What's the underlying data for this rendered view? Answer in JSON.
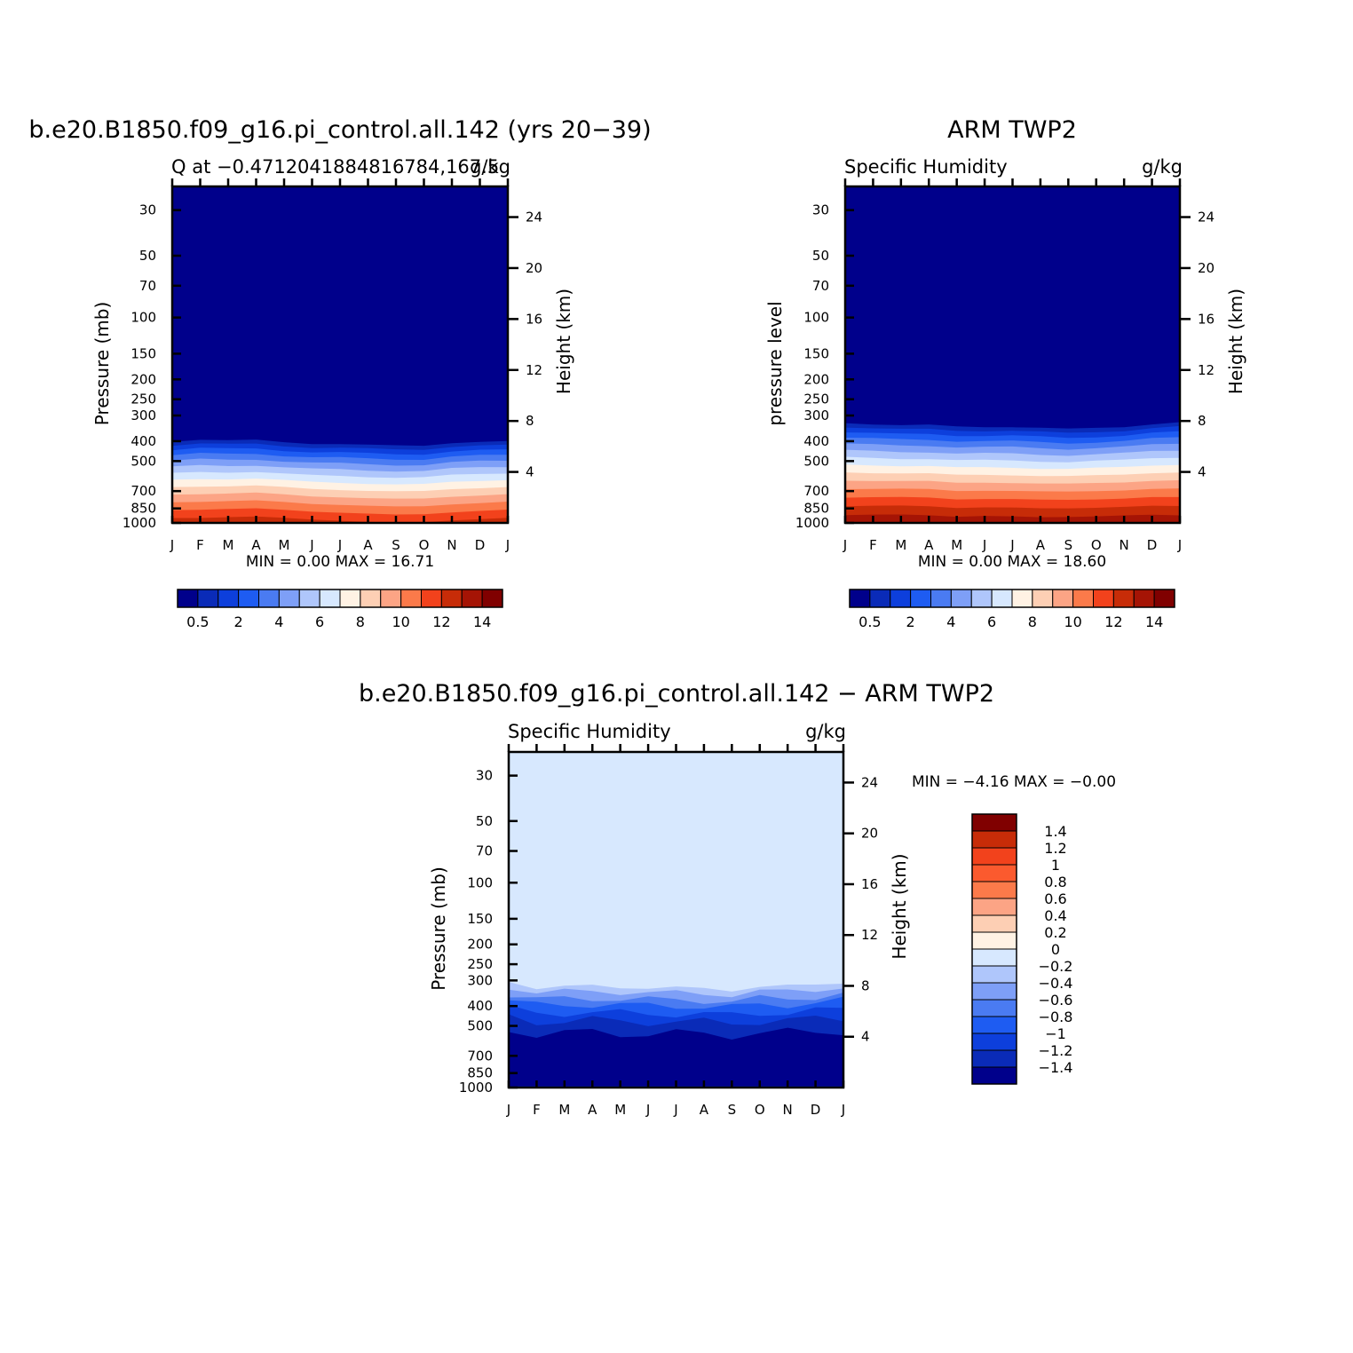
{
  "chart_data": [
    {
      "type": "heatmap",
      "title": "b.e20.B1850.f09_g16.pi_control.all.142 (yrs 20−39)",
      "subtitle_left": "Q at −0.4712041884816784,167.5",
      "subtitle_right": "g/kg",
      "ylabel": "Pressure (mb)",
      "ylabel_right": "Height (km)",
      "x_ticks": [
        "J",
        "F",
        "M",
        "A",
        "M",
        "J",
        "J",
        "A",
        "S",
        "O",
        "N",
        "D",
        "J"
      ],
      "y_ticks": [
        30,
        50,
        70,
        100,
        150,
        200,
        250,
        300,
        400,
        500,
        700,
        850,
        1000
      ],
      "y_right_ticks": [
        24,
        20,
        16,
        12,
        8,
        4
      ],
      "ylim": [
        1000,
        23
      ],
      "min_label": "MIN =",
      "min_value": "0.00",
      "max_label": "MAX =",
      "max_value": "16.71",
      "field_min": 0.0,
      "field_max": 16.71,
      "surface_max_by_month": [
        16.3,
        16.2,
        16.4,
        16.6,
        16.4,
        16.0,
        15.7,
        15.5,
        15.4,
        15.5,
        15.8,
        16.0,
        16.3
      ],
      "moist_top_pressure_by_month": [
        390,
        380,
        385,
        385,
        395,
        400,
        400,
        405,
        410,
        410,
        395,
        390,
        390
      ],
      "colorbar": {
        "orientation": "horizontal",
        "levels": [
          0.5,
          1,
          2,
          3,
          4,
          5,
          6,
          7,
          8,
          9,
          10,
          11,
          12,
          13,
          14
        ],
        "tick_labels": [
          "0.5",
          "2",
          "4",
          "6",
          "8",
          "10",
          "12",
          "14"
        ],
        "colors": [
          "#00008b",
          "#0a2bb8",
          "#0d3fdc",
          "#1e5cf2",
          "#4a7bf2",
          "#7e9ff7",
          "#afc6fb",
          "#d7e8fe",
          "#fff2e4",
          "#fdcfb4",
          "#fca485",
          "#fb7a4a",
          "#f2421c",
          "#c72c08",
          "#a51405",
          "#800000"
        ]
      }
    },
    {
      "type": "heatmap",
      "title": "ARM TWP2",
      "subtitle_left": "Specific Humidity",
      "subtitle_right": "g/kg",
      "ylabel": "pressure level",
      "ylabel_right": "Height (km)",
      "x_ticks": [
        "J",
        "F",
        "M",
        "A",
        "M",
        "J",
        "J",
        "A",
        "S",
        "O",
        "N",
        "D",
        "J"
      ],
      "y_ticks": [
        30,
        50,
        70,
        100,
        150,
        200,
        250,
        300,
        400,
        500,
        700,
        850,
        1000
      ],
      "y_right_ticks": [
        24,
        20,
        16,
        12,
        8,
        4
      ],
      "ylim": [
        1000,
        23
      ],
      "min_label": "MIN =",
      "min_value": "0.00",
      "max_label": "MAX =",
      "max_value": "18.60",
      "field_min": 0.0,
      "field_max": 18.6,
      "surface_max_by_month": [
        18.3,
        18.4,
        18.5,
        18.4,
        18.1,
        18.2,
        18.1,
        18.0,
        18.1,
        18.2,
        18.3,
        18.4,
        18.3
      ],
      "moist_top_pressure_by_month": [
        315,
        320,
        325,
        325,
        330,
        330,
        330,
        335,
        340,
        335,
        330,
        320,
        315
      ],
      "colorbar": {
        "orientation": "horizontal",
        "levels": [
          0.5,
          1,
          2,
          3,
          4,
          5,
          6,
          7,
          8,
          9,
          10,
          11,
          12,
          13,
          14
        ],
        "tick_labels": [
          "0.5",
          "2",
          "4",
          "6",
          "8",
          "10",
          "12",
          "14"
        ],
        "colors": [
          "#00008b",
          "#0a2bb8",
          "#0d3fdc",
          "#1e5cf2",
          "#4a7bf2",
          "#7e9ff7",
          "#afc6fb",
          "#d7e8fe",
          "#fff2e4",
          "#fdcfb4",
          "#fca485",
          "#fb7a4a",
          "#f2421c",
          "#c72c08",
          "#a51405",
          "#800000"
        ]
      }
    },
    {
      "type": "heatmap",
      "title": "b.e20.B1850.f09_g16.pi_control.all.142 − ARM TWP2",
      "subtitle_left": "Specific Humidity",
      "subtitle_right": "g/kg",
      "ylabel": "Pressure (mb)",
      "ylabel_right": "Height (km)",
      "x_ticks": [
        "J",
        "F",
        "M",
        "A",
        "M",
        "J",
        "J",
        "A",
        "S",
        "O",
        "N",
        "D",
        "J"
      ],
      "y_ticks": [
        30,
        50,
        70,
        100,
        150,
        200,
        250,
        300,
        400,
        500,
        700,
        850,
        1000
      ],
      "y_right_ticks": [
        24,
        20,
        16,
        12,
        8,
        4
      ],
      "ylim": [
        1000,
        23
      ],
      "min_label": "MIN =",
      "min_value": "−4.16",
      "max_label": "MAX =",
      "max_value": "−0.00",
      "field_min": -4.16,
      "field_max": 0.0,
      "upper_bias_top_pressure_by_month": [
        305,
        325,
        320,
        320,
        325,
        325,
        325,
        330,
        335,
        320,
        320,
        315,
        305
      ],
      "colorbar": {
        "orientation": "vertical",
        "levels": [
          1.4,
          1.2,
          1,
          0.8,
          0.6,
          0.4,
          0.2,
          0,
          -0.2,
          -0.4,
          -0.6,
          -0.8,
          -1,
          -1.2,
          -1.4
        ],
        "tick_labels": [
          "1.4",
          "1.2",
          "1",
          "0.8",
          "0.6",
          "0.4",
          "0.2",
          "0",
          "−0.2",
          "−0.4",
          "−0.6",
          "−0.8",
          "−1",
          "−1.2",
          "−1.4"
        ],
        "colors": [
          "#800000",
          "#c72c08",
          "#f2421c",
          "#fb5a2e",
          "#fc7a4a",
          "#fca485",
          "#fdcfb4",
          "#fff2e4",
          "#d7e8fe",
          "#afc6fb",
          "#7e9ff7",
          "#4a7bf2",
          "#1e5cf2",
          "#0d3fdc",
          "#0a2bb8",
          "#00008b"
        ]
      }
    }
  ]
}
